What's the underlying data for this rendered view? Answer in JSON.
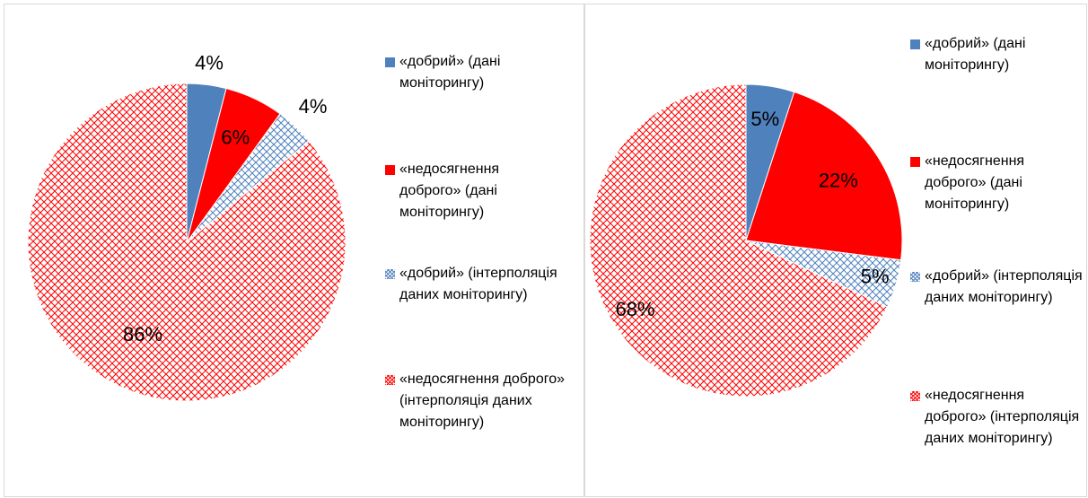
{
  "legend": {
    "items": [
      {
        "label": "«добрий» (дані моніторингу)"
      },
      {
        "label": "«недосягнення доброго» (дані моніторингу)"
      },
      {
        "label": "«добрий» (інтерполяція даних моніторингу)"
      },
      {
        "label": "«недосягнення доброго» (інтерполяція даних моніторингу)"
      }
    ]
  },
  "colors": {
    "good_monitoring": "#4f81bd",
    "not_good_monitoring": "#ff0000",
    "good_interpolation": "#4f81bd",
    "not_good_interpolation": "#ff0000"
  },
  "chart_data": [
    {
      "type": "pie",
      "categories": [
        "«добрий» (дані моніторингу)",
        "«недосягнення доброго» (дані моніторингу)",
        "«добрий» (інтерполяція даних моніторингу)",
        "«недосягнення доброго» (інтерполяція даних моніторингу)"
      ],
      "values": [
        4,
        6,
        4,
        86
      ],
      "data_labels": [
        "4%",
        "6%",
        "4%",
        "86%"
      ],
      "legend_position": "right"
    },
    {
      "type": "pie",
      "categories": [
        "«добрий» (дані моніторингу)",
        "«недосягнення доброго» (дані моніторингу)",
        "«добрий» (інтерполяція даних моніторингу)",
        "«недосягнення доброго» (інтерполяція даних моніторингу)"
      ],
      "values": [
        5,
        22,
        5,
        68
      ],
      "data_labels": [
        "5%",
        "22%",
        "5%",
        "68%"
      ],
      "legend_position": "right"
    }
  ]
}
